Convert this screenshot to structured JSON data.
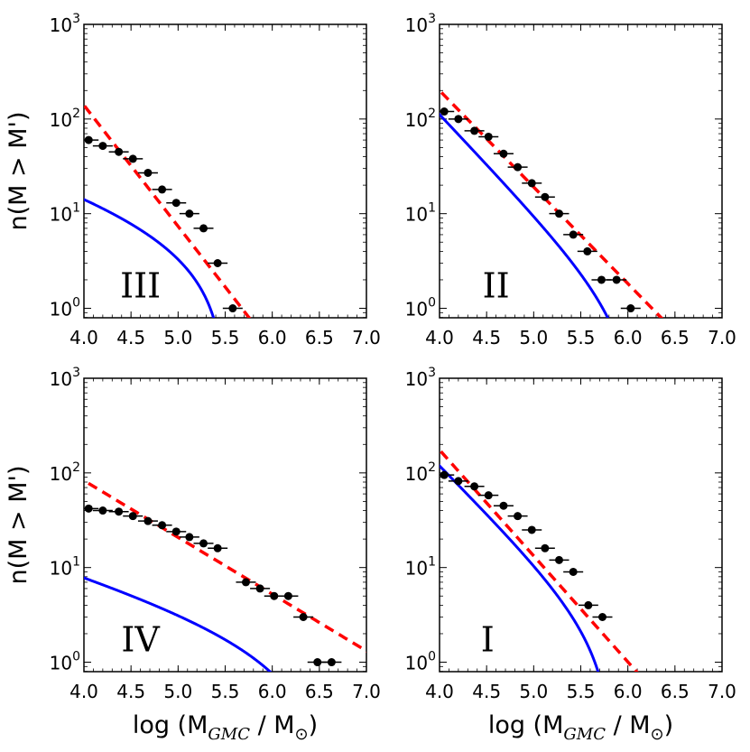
{
  "chart_data": [
    {
      "type": "scatter",
      "label": "III",
      "xlim": [
        4.0,
        7.0
      ],
      "ylim_log10": [
        -0.1,
        3.0
      ],
      "xticks": [
        "4.0",
        "4.5",
        "5.0",
        "5.5",
        "6.0",
        "6.5",
        "7.0"
      ],
      "ylabel": "n(M > M')",
      "xlabel": "",
      "points": [
        [
          4.05,
          60
        ],
        [
          4.2,
          52
        ],
        [
          4.37,
          45
        ],
        [
          4.52,
          38
        ],
        [
          4.68,
          27
        ],
        [
          4.83,
          18
        ],
        [
          4.98,
          13
        ],
        [
          5.12,
          10
        ],
        [
          5.27,
          7
        ],
        [
          5.42,
          3
        ],
        [
          5.58,
          1
        ]
      ],
      "fit_power_law": {
        "x0": 4.0,
        "y0": 140,
        "slope": -1.28
      },
      "fit_truncated": {
        "N0": 7.6,
        "M0": 5.52,
        "gamma": -1.3
      }
    },
    {
      "type": "scatter",
      "label": "II",
      "xlim": [
        4.0,
        7.0
      ],
      "ylim_log10": [
        -0.1,
        3.0
      ],
      "xticks": [
        "4.0",
        "4.5",
        "5.0",
        "5.5",
        "6.0",
        "6.5",
        "7.0"
      ],
      "ylabel": "",
      "xlabel": "",
      "points": [
        [
          4.05,
          120
        ],
        [
          4.2,
          100
        ],
        [
          4.37,
          75
        ],
        [
          4.52,
          65
        ],
        [
          4.68,
          43
        ],
        [
          4.83,
          31
        ],
        [
          4.98,
          21
        ],
        [
          5.12,
          15
        ],
        [
          5.27,
          10
        ],
        [
          5.42,
          6
        ],
        [
          5.57,
          4
        ],
        [
          5.72,
          2
        ],
        [
          5.88,
          2
        ],
        [
          6.03,
          1
        ]
      ],
      "fit_power_law": {
        "x0": 4.0,
        "y0": 200,
        "slope": -1.02
      },
      "fit_truncated": {
        "N0": 0.7,
        "M0": 6.1,
        "gamma": -2.05
      }
    },
    {
      "type": "scatter",
      "label": "IV",
      "xlim": [
        4.0,
        7.0
      ],
      "ylim_log10": [
        -0.1,
        3.0
      ],
      "xticks": [
        "4.0",
        "4.5",
        "5.0",
        "5.5",
        "6.0",
        "6.5",
        "7.0"
      ],
      "ylabel": "n(M > M')",
      "xlabel": "log (M_GMC / M_⊙)",
      "points": [
        [
          4.05,
          42
        ],
        [
          4.2,
          40
        ],
        [
          4.37,
          39
        ],
        [
          4.52,
          35
        ],
        [
          4.68,
          31
        ],
        [
          4.83,
          28
        ],
        [
          4.98,
          24
        ],
        [
          5.12,
          21
        ],
        [
          5.27,
          18
        ],
        [
          5.42,
          16
        ],
        [
          5.72,
          7
        ],
        [
          5.87,
          6
        ],
        [
          6.02,
          5
        ],
        [
          6.17,
          5
        ],
        [
          6.33,
          3
        ],
        [
          6.48,
          1
        ],
        [
          6.63,
          1
        ]
      ],
      "fit_power_law": {
        "x0": 4.0,
        "y0": 83,
        "slope": -0.6
      },
      "fit_truncated": {
        "N0": 1.6,
        "M0": 6.56,
        "gamma": -1.3
      }
    },
    {
      "type": "scatter",
      "label": "I",
      "xlim": [
        4.0,
        7.0
      ],
      "ylim_log10": [
        -0.1,
        3.0
      ],
      "xticks": [
        "4.0",
        "4.5",
        "5.0",
        "5.5",
        "6.0",
        "6.5",
        "7.0"
      ],
      "ylabel": "",
      "xlabel": "log (M_GMC / M_⊙)",
      "points": [
        [
          4.05,
          95
        ],
        [
          4.2,
          82
        ],
        [
          4.37,
          72
        ],
        [
          4.52,
          58
        ],
        [
          4.68,
          45
        ],
        [
          4.83,
          35
        ],
        [
          4.98,
          25
        ],
        [
          5.12,
          16
        ],
        [
          5.27,
          12
        ],
        [
          5.42,
          9
        ],
        [
          5.58,
          4
        ],
        [
          5.73,
          3
        ]
      ],
      "fit_power_law": {
        "x0": 4.0,
        "y0": 175,
        "slope": -1.12
      },
      "fit_truncated": {
        "N0": 1.7,
        "M0": 5.85,
        "gamma": -2.0
      }
    }
  ],
  "colors": {
    "points": "#000000",
    "power_law": "#ff0000",
    "truncated": "#0000ff"
  },
  "ytick_base": "10",
  "ytick_exponents": [
    "0",
    "1",
    "2",
    "3"
  ],
  "ylabel_text": "n(M > M')",
  "xlabel_parts": {
    "pre": "log (M",
    "sub": "GMC",
    "mid": " / M",
    "sun": "⊙",
    "post": ")"
  }
}
